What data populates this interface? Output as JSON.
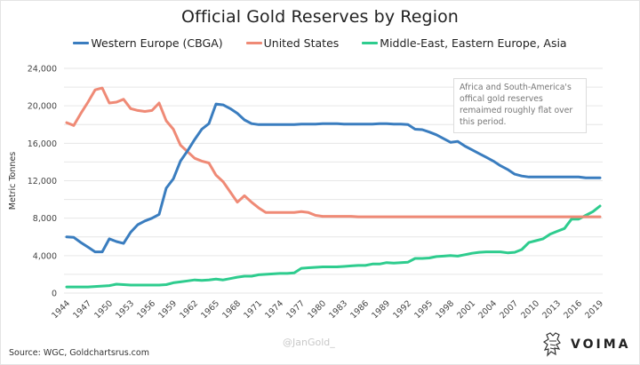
{
  "chart_data": {
    "type": "line",
    "title": "Official Gold Reserves by Region",
    "xlabel": "",
    "ylabel": "Metric Tonnes",
    "ylim": [
      0,
      24000
    ],
    "xlim": [
      1944,
      2019
    ],
    "y_ticks": [
      0,
      4000,
      8000,
      12000,
      16000,
      20000,
      24000
    ],
    "y_tick_labels": [
      "0",
      "4,000",
      "8,000",
      "12,000",
      "16,000",
      "20,000",
      "24,000"
    ],
    "y_gridlines_every": 2000,
    "grid": true,
    "x_ticks": [
      1944,
      1947,
      1950,
      1953,
      1956,
      1959,
      1962,
      1965,
      1968,
      1971,
      1974,
      1977,
      1980,
      1983,
      1986,
      1989,
      1992,
      1995,
      1998,
      2001,
      2004,
      2007,
      2010,
      2013,
      2016,
      2019
    ],
    "legend_position": "top-center",
    "x": [
      1944,
      1945,
      1946,
      1947,
      1948,
      1949,
      1950,
      1951,
      1952,
      1953,
      1954,
      1955,
      1956,
      1957,
      1958,
      1959,
      1960,
      1961,
      1962,
      1963,
      1964,
      1965,
      1966,
      1967,
      1968,
      1969,
      1970,
      1971,
      1972,
      1973,
      1974,
      1975,
      1976,
      1977,
      1978,
      1979,
      1980,
      1981,
      1982,
      1983,
      1984,
      1985,
      1986,
      1987,
      1988,
      1989,
      1990,
      1991,
      1992,
      1993,
      1994,
      1995,
      1996,
      1997,
      1998,
      1999,
      2000,
      2001,
      2002,
      2003,
      2004,
      2005,
      2006,
      2007,
      2008,
      2009,
      2010,
      2011,
      2012,
      2013,
      2014,
      2015,
      2016,
      2017,
      2018,
      2019
    ],
    "series": [
      {
        "name": "Western Europe (CBGA)",
        "color": "#3a7dbf",
        "values": [
          6000,
          5950,
          5400,
          4900,
          4400,
          4400,
          5800,
          5500,
          5300,
          6500,
          7300,
          7700,
          8000,
          8400,
          11200,
          12200,
          14100,
          15200,
          16400,
          17500,
          18100,
          20200,
          20100,
          19700,
          19200,
          18500,
          18100,
          18000,
          18000,
          18000,
          18000,
          18000,
          18000,
          18050,
          18050,
          18050,
          18100,
          18100,
          18100,
          18050,
          18050,
          18050,
          18050,
          18050,
          18100,
          18100,
          18050,
          18050,
          18000,
          17500,
          17450,
          17200,
          16900,
          16500,
          16100,
          16200,
          15700,
          15300,
          14900,
          14500,
          14100,
          13600,
          13200,
          12700,
          12500,
          12400,
          12400,
          12400,
          12400,
          12400,
          12400,
          12400,
          12400,
          12300,
          12300,
          12300
        ]
      },
      {
        "name": "United States",
        "color": "#ef8a76",
        "values": [
          18200,
          17900,
          19200,
          20400,
          21700,
          21900,
          20300,
          20400,
          20700,
          19700,
          19500,
          19400,
          19500,
          20300,
          18400,
          17500,
          15800,
          15100,
          14400,
          14100,
          13900,
          12600,
          11900,
          10800,
          9700,
          10400,
          9700,
          9100,
          8600,
          8600,
          8600,
          8600,
          8600,
          8700,
          8600,
          8300,
          8200,
          8200,
          8200,
          8200,
          8200,
          8150,
          8150,
          8150,
          8150,
          8150,
          8150,
          8150,
          8150,
          8150,
          8150,
          8150,
          8150,
          8150,
          8150,
          8150,
          8150,
          8150,
          8150,
          8150,
          8150,
          8150,
          8150,
          8150,
          8150,
          8150,
          8150,
          8150,
          8150,
          8150,
          8150,
          8150,
          8150,
          8150,
          8150,
          8150
        ]
      },
      {
        "name": "Middle-East, Eastern Europe, Asia",
        "color": "#2ecc8e",
        "values": [
          650,
          650,
          650,
          650,
          700,
          750,
          800,
          950,
          900,
          850,
          850,
          850,
          850,
          850,
          900,
          1100,
          1200,
          1300,
          1400,
          1350,
          1400,
          1500,
          1400,
          1550,
          1700,
          1800,
          1800,
          1950,
          2000,
          2050,
          2100,
          2100,
          2150,
          2650,
          2700,
          2750,
          2800,
          2800,
          2800,
          2850,
          2900,
          2950,
          2950,
          3100,
          3100,
          3250,
          3200,
          3250,
          3300,
          3700,
          3700,
          3750,
          3900,
          3950,
          4000,
          3950,
          4100,
          4250,
          4350,
          4400,
          4400,
          4400,
          4300,
          4350,
          4650,
          5400,
          5600,
          5800,
          6300,
          6600,
          6900,
          7900,
          7900,
          8300,
          8700,
          9300
        ]
      }
    ],
    "annotations": [
      "Africa and South-America's offical gold reserves remaimed roughly flat over this period."
    ]
  },
  "footer": {
    "source": "Source: WGC, Goldchartsrus.com",
    "watermark": "@JanGold_",
    "logo_text": "VOIMA"
  }
}
